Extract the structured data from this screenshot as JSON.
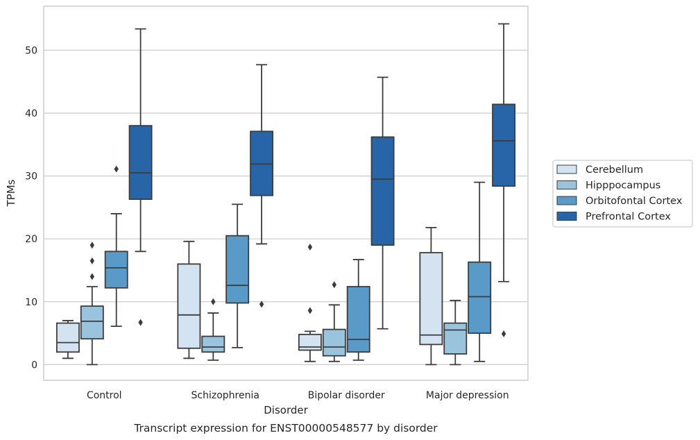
{
  "chart_data": {
    "type": "box",
    "title": "",
    "caption": "Transcript expression for ENST00000548577 by disorder",
    "xlabel": "Disorder",
    "ylabel": "TPMs",
    "ylim": [
      -2.5,
      57
    ],
    "yticks": [
      0,
      10,
      20,
      30,
      40,
      50
    ],
    "grid": "horizontal",
    "legend_position": "right",
    "categories": [
      "Control",
      "Schizophrenia",
      "Bipolar disorder",
      "Major depression"
    ],
    "series": [
      {
        "name": "Cerebellum",
        "color": "#d3e3f2",
        "boxes": [
          {
            "whislo": 1.0,
            "q1": 2.0,
            "med": 3.5,
            "q3": 6.6,
            "whishi": 7.0,
            "fliers": []
          },
          {
            "whislo": 1.0,
            "q1": 2.6,
            "med": 7.9,
            "q3": 16.0,
            "whishi": 19.6,
            "fliers": []
          },
          {
            "whislo": 0.5,
            "q1": 2.3,
            "med": 2.8,
            "q3": 4.8,
            "whishi": 5.3,
            "fliers": [
              18.7,
              8.6
            ]
          },
          {
            "whislo": 0.0,
            "q1": 3.2,
            "med": 4.7,
            "q3": 17.8,
            "whishi": 21.8,
            "fliers": []
          }
        ]
      },
      {
        "name": "Hipppocampus",
        "color": "#9ac4de",
        "boxes": [
          {
            "whislo": 0.0,
            "q1": 4.1,
            "med": 6.9,
            "q3": 9.3,
            "whishi": 12.4,
            "fliers": [
              19.0,
              16.5,
              14.0
            ]
          },
          {
            "whislo": 0.7,
            "q1": 2.0,
            "med": 2.8,
            "q3": 4.5,
            "whishi": 8.2,
            "fliers": [
              10.0
            ]
          },
          {
            "whislo": 0.5,
            "q1": 1.4,
            "med": 2.8,
            "q3": 5.6,
            "whishi": 9.5,
            "fliers": [
              12.7
            ]
          },
          {
            "whislo": 0.0,
            "q1": 1.7,
            "med": 5.5,
            "q3": 6.6,
            "whishi": 10.2,
            "fliers": []
          }
        ]
      },
      {
        "name": "Orbitofontal Cortex",
        "color": "#5a9ac8",
        "boxes": [
          {
            "whislo": 6.1,
            "q1": 12.2,
            "med": 15.4,
            "q3": 18.0,
            "whishi": 24.0,
            "fliers": [
              31.1
            ]
          },
          {
            "whislo": 2.7,
            "q1": 9.8,
            "med": 12.6,
            "q3": 20.5,
            "whishi": 25.5,
            "fliers": []
          },
          {
            "whislo": 0.7,
            "q1": 2.0,
            "med": 4.0,
            "q3": 12.4,
            "whishi": 16.7,
            "fliers": []
          },
          {
            "whislo": 0.5,
            "q1": 5.0,
            "med": 10.8,
            "q3": 16.3,
            "whishi": 29.0,
            "fliers": []
          }
        ]
      },
      {
        "name": "Prefrontal Cortex",
        "color": "#2864a8",
        "boxes": [
          {
            "whislo": 18.0,
            "q1": 26.3,
            "med": 30.5,
            "q3": 38.0,
            "whishi": 53.4,
            "fliers": [
              6.7
            ]
          },
          {
            "whislo": 19.2,
            "q1": 26.9,
            "med": 31.9,
            "q3": 37.1,
            "whishi": 47.7,
            "fliers": [
              9.6
            ]
          },
          {
            "whislo": 5.7,
            "q1": 19.0,
            "med": 29.5,
            "q3": 36.2,
            "whishi": 45.7,
            "fliers": []
          },
          {
            "whislo": 13.2,
            "q1": 28.4,
            "med": 35.6,
            "q3": 41.4,
            "whishi": 54.2,
            "fliers": [
              4.9
            ]
          }
        ]
      }
    ]
  }
}
